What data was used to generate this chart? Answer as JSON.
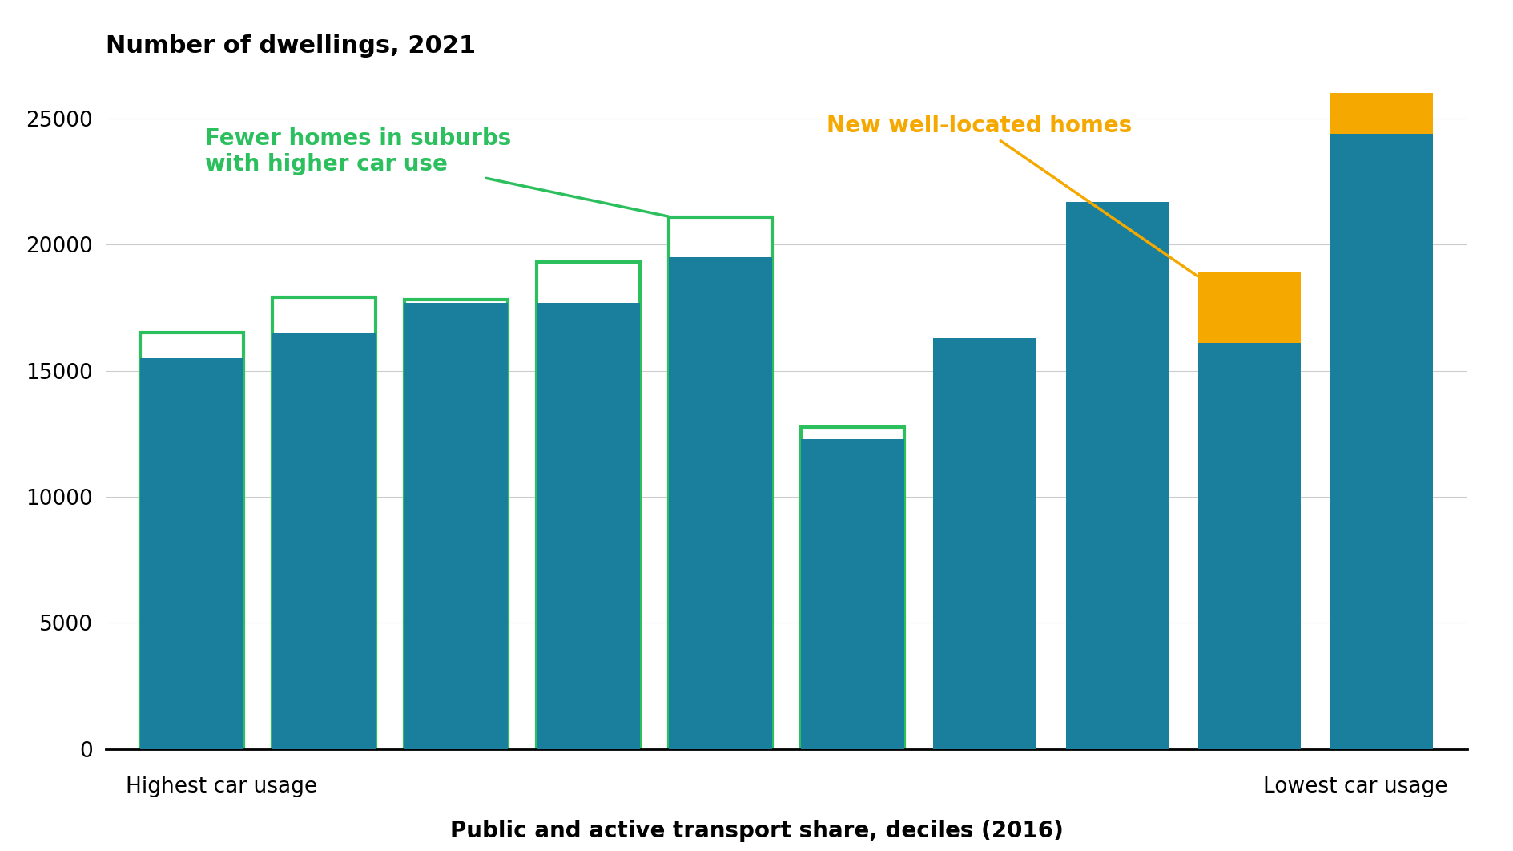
{
  "title": "Number of dwellings, 2021",
  "xlabel": "Public and active transport share, deciles (2016)",
  "xlim_label_left": "Highest car usage",
  "xlim_label_right": "Lowest car usage",
  "background_color": "#ffffff",
  "teal_color": "#1a7f9c",
  "orange_color": "#f5a800",
  "green_color": "#2bbf5e",
  "annotation_green": "Fewer homes in suburbs\nwith higher car use",
  "annotation_orange": "New well-located homes",
  "ylim": [
    0,
    27000
  ],
  "yticks": [
    0,
    5000,
    10000,
    15000,
    20000,
    25000
  ],
  "teal_values": [
    15500,
    16500,
    17700,
    17700,
    19500,
    12300,
    16300,
    21700,
    16100,
    24400
  ],
  "outline_values": [
    16500,
    17900,
    17800,
    19300,
    21100,
    12750,
    null,
    null,
    null,
    null
  ],
  "orange_values": [
    null,
    null,
    null,
    null,
    null,
    null,
    null,
    21700,
    18900,
    26000
  ],
  "title_fontsize": 22,
  "xlabel_fontsize": 20,
  "tick_fontsize": 19,
  "annotation_fontsize": 20
}
